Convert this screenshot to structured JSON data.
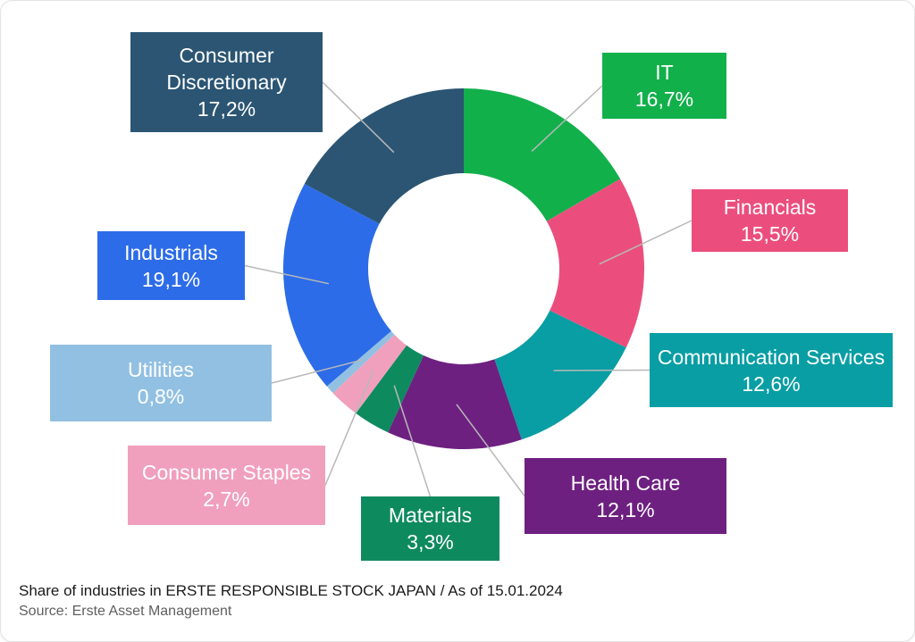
{
  "caption": {
    "title": "Share of industries in ERSTE RESPONSIBLE STOCK JAPAN / As of 15.01.2024",
    "source": "Source: Erste Asset Management"
  },
  "chart_data": {
    "type": "pie",
    "subtype": "donut",
    "title": "Share of industries in ERSTE RESPONSIBLE STOCK JAPAN",
    "as_of": "15.01.2024",
    "source": "Erste Asset Management",
    "start_angle_deg": 0,
    "direction": "clockwise",
    "unit": "%",
    "decimal_separator": ",",
    "leader_line_color": "#b8b8b8",
    "legend_position": "callout-boxes",
    "segments": [
      {
        "label": "IT",
        "value": 16.7,
        "value_label": "16,7%",
        "color": "#12B04B"
      },
      {
        "label": "Financials",
        "value": 15.5,
        "value_label": "15,5%",
        "color": "#EB4E7D"
      },
      {
        "label": "Communication Services",
        "value": 12.6,
        "value_label": "12,6%",
        "color": "#089EA4"
      },
      {
        "label": "Health Care",
        "value": 12.1,
        "value_label": "12,1%",
        "color": "#6E2081"
      },
      {
        "label": "Materials",
        "value": 3.3,
        "value_label": "3,3%",
        "color": "#0E8A5F"
      },
      {
        "label": "Consumer Staples",
        "value": 2.7,
        "value_label": "2,7%",
        "color": "#F0A0BC"
      },
      {
        "label": "Utilities",
        "value": 0.8,
        "value_label": "0,8%",
        "color": "#92C0E2"
      },
      {
        "label": "Industrials",
        "value": 19.1,
        "value_label": "19,1%",
        "color": "#2D6CE8"
      },
      {
        "label": "Consumer Discretionary",
        "value": 17.2,
        "value_label": "17,2%",
        "color": "#2B5573"
      }
    ]
  }
}
